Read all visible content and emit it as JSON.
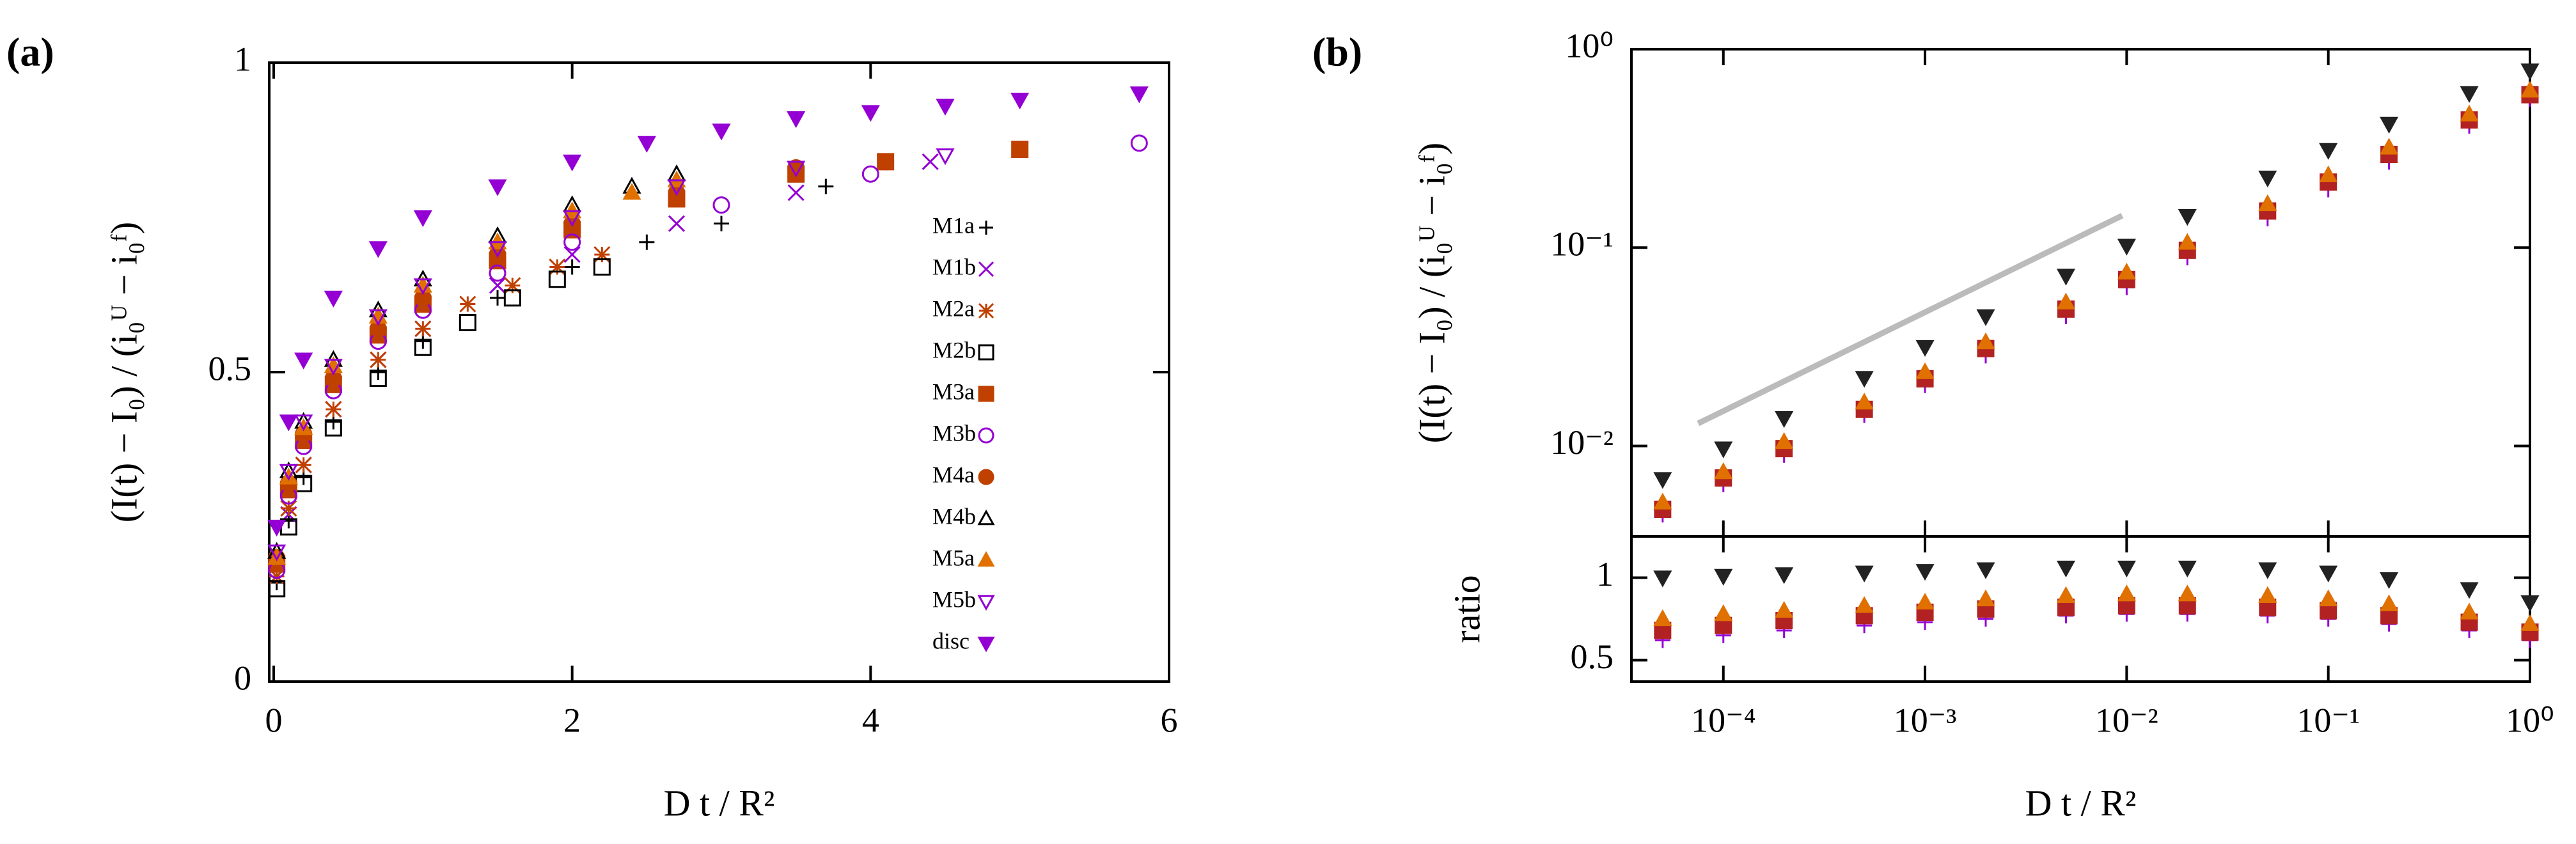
{
  "chart_data": [
    {
      "type": "scatter",
      "panel_label": "(a)",
      "xlabel": "D t / R²",
      "ylabel": "(I(t) − I₀) / (i₀ᵁ − i₀ᶠ)",
      "xlim": [
        -0.03,
        6
      ],
      "ylim": [
        0,
        1
      ],
      "xticks": [
        0,
        2,
        4,
        6
      ],
      "yticks": [
        0,
        0.5,
        1
      ],
      "legend": "right",
      "series": [
        {
          "name": "M1a",
          "marker": "plus",
          "color": "#000000",
          "x": [
            0.02,
            0.1,
            0.2,
            0.4,
            0.7,
            1,
            1.5,
            2,
            2.5,
            3,
            3.7
          ],
          "values": [
            0.16,
            0.26,
            0.33,
            0.42,
            0.5,
            0.55,
            0.62,
            0.67,
            0.71,
            0.74,
            0.8
          ]
        },
        {
          "name": "M1b",
          "marker": "cross",
          "color": "#9400d3",
          "x": [
            0.02,
            0.1,
            0.2,
            0.4,
            0.7,
            1,
            1.5,
            2,
            2.7,
            3.5,
            4.4
          ],
          "values": [
            0.17,
            0.27,
            0.35,
            0.44,
            0.52,
            0.57,
            0.64,
            0.69,
            0.74,
            0.79,
            0.84
          ]
        },
        {
          "name": "M2a",
          "marker": "star",
          "color": "#c04000",
          "x": [
            0.02,
            0.1,
            0.2,
            0.4,
            0.7,
            1,
            1.3,
            1.6,
            1.9,
            2.2
          ],
          "values": [
            0.17,
            0.28,
            0.35,
            0.44,
            0.52,
            0.57,
            0.61,
            0.64,
            0.67,
            0.69
          ]
        },
        {
          "name": "M2b",
          "marker": "square_open",
          "color": "#000000",
          "x": [
            0.02,
            0.1,
            0.2,
            0.4,
            0.7,
            1,
            1.3,
            1.6,
            1.9,
            2.2
          ],
          "values": [
            0.15,
            0.25,
            0.32,
            0.41,
            0.49,
            0.54,
            0.58,
            0.62,
            0.65,
            0.67
          ]
        },
        {
          "name": "M3a",
          "marker": "square",
          "color": "#c04000",
          "x": [
            0.02,
            0.1,
            0.2,
            0.4,
            0.7,
            1,
            1.5,
            2,
            2.7,
            3.5,
            4.1,
            5
          ],
          "values": [
            0.19,
            0.31,
            0.39,
            0.48,
            0.56,
            0.61,
            0.68,
            0.73,
            0.78,
            0.82,
            0.84,
            0.86
          ]
        },
        {
          "name": "M3b",
          "marker": "circle_open",
          "color": "#9400d3",
          "x": [
            0.02,
            0.1,
            0.2,
            0.4,
            0.7,
            1,
            1.5,
            2,
            3,
            4,
            5.8
          ],
          "values": [
            0.18,
            0.3,
            0.38,
            0.47,
            0.55,
            0.6,
            0.66,
            0.71,
            0.77,
            0.82,
            0.87
          ]
        },
        {
          "name": "M4a",
          "marker": "circle",
          "color": "#c04000",
          "x": [
            0.02,
            0.1,
            0.2,
            0.4,
            0.7,
            1,
            1.5,
            2,
            2.7,
            3.5,
            4.1
          ],
          "values": [
            0.2,
            0.32,
            0.4,
            0.49,
            0.57,
            0.62,
            0.69,
            0.74,
            0.79,
            0.83,
            0.84
          ]
        },
        {
          "name": "M4b",
          "marker": "triangle_up_open",
          "color": "#000000",
          "x": [
            0.02,
            0.1,
            0.2,
            0.4,
            0.7,
            1,
            1.5,
            2,
            2.4,
            2.7
          ],
          "values": [
            0.21,
            0.34,
            0.42,
            0.52,
            0.6,
            0.65,
            0.72,
            0.77,
            0.8,
            0.82
          ]
        },
        {
          "name": "M5a",
          "marker": "triangle_up",
          "color": "#e07000",
          "x": [
            0.02,
            0.1,
            0.2,
            0.4,
            0.7,
            1,
            1.5,
            2,
            2.4,
            2.7
          ],
          "values": [
            0.2,
            0.33,
            0.41,
            0.51,
            0.59,
            0.64,
            0.71,
            0.76,
            0.79,
            0.81
          ]
        },
        {
          "name": "M5b",
          "marker": "triangle_down_open",
          "color": "#9400d3",
          "x": [
            0.02,
            0.1,
            0.2,
            0.4,
            0.7,
            1,
            1.5,
            2,
            2.7,
            3.5,
            4.5
          ],
          "values": [
            0.21,
            0.34,
            0.42,
            0.51,
            0.59,
            0.64,
            0.7,
            0.75,
            0.8,
            0.83,
            0.85
          ]
        },
        {
          "name": "disc",
          "marker": "triangle_down",
          "color": "#9400d3",
          "x": [
            0.02,
            0.1,
            0.2,
            0.4,
            0.7,
            1,
            1.5,
            2,
            2.5,
            3,
            3.5,
            4,
            4.5,
            5,
            5.8
          ],
          "values": [
            0.25,
            0.42,
            0.52,
            0.62,
            0.7,
            0.75,
            0.8,
            0.84,
            0.87,
            0.89,
            0.91,
            0.92,
            0.93,
            0.94,
            0.95
          ]
        }
      ]
    },
    {
      "type": "scatter",
      "panel_label": "(b)",
      "ylabel": "(I(t) − I₀) / (i₀ᵁ − i₀ᶠ)",
      "log_x": true,
      "log_y": true,
      "xlim": [
        3.5e-05,
        1
      ],
      "ylim": [
        0.0035,
        1
      ],
      "yticks": [
        {
          "value": 0.01,
          "label": "10⁻²"
        },
        {
          "value": 0.1,
          "label": "10⁻¹"
        },
        {
          "value": 1,
          "label": "10⁰"
        }
      ],
      "reference_line": {
        "x": [
          7.5e-05,
          0.0095
        ],
        "y": [
          0.013,
          0.145
        ],
        "color": "#bbbbbb"
      },
      "x": [
        5e-05,
        0.0001,
        0.0002,
        0.0005,
        0.001,
        0.002,
        0.005,
        0.01,
        0.02,
        0.05,
        0.1,
        0.2,
        0.5,
        1
      ],
      "series": [
        {
          "marker": "plus",
          "color": "#9400d3",
          "values": [
            0.0045,
            0.0064,
            0.009,
            0.0143,
            0.0202,
            0.0285,
            0.045,
            0.063,
            0.089,
            0.14,
            0.196,
            0.27,
            0.41,
            0.56
          ]
        },
        {
          "marker": "square",
          "color": "#b22222",
          "values": [
            0.0048,
            0.0069,
            0.0097,
            0.0153,
            0.0218,
            0.031,
            0.049,
            0.069,
            0.097,
            0.153,
            0.214,
            0.295,
            0.44,
            0.59
          ]
        },
        {
          "marker": "triangle_up",
          "color": "#e07000",
          "values": [
            0.0052,
            0.0074,
            0.0105,
            0.0166,
            0.0236,
            0.0334,
            0.053,
            0.075,
            0.106,
            0.166,
            0.232,
            0.32,
            0.47,
            0.62
          ]
        },
        {
          "marker": "triangle_down",
          "color": "#222222",
          "values": [
            0.0068,
            0.0097,
            0.0138,
            0.022,
            0.0315,
            0.045,
            0.072,
            0.102,
            0.144,
            0.225,
            0.31,
            0.42,
            0.6,
            0.78
          ]
        }
      ]
    },
    {
      "type": "scatter",
      "ylabel": "ratio",
      "xlabel": "D t / R²",
      "log_x": true,
      "xlim": [
        3.5e-05,
        1
      ],
      "ylim": [
        0.37,
        1.25
      ],
      "xticks": [
        {
          "value": 0.0001,
          "label": "10⁻⁴"
        },
        {
          "value": 0.001,
          "label": "10⁻³"
        },
        {
          "value": 0.01,
          "label": "10⁻²"
        },
        {
          "value": 0.1,
          "label": "10⁻¹"
        },
        {
          "value": 1,
          "label": "10⁰"
        }
      ],
      "yticks": [
        0.5,
        1
      ],
      "x": [
        5e-05,
        0.0001,
        0.0002,
        0.0005,
        0.001,
        0.002,
        0.005,
        0.01,
        0.02,
        0.05,
        0.1,
        0.2,
        0.5,
        1
      ],
      "series": [
        {
          "marker": "plus",
          "color": "#9400d3",
          "values": [
            0.62,
            0.65,
            0.68,
            0.71,
            0.73,
            0.75,
            0.77,
            0.78,
            0.78,
            0.77,
            0.75,
            0.72,
            0.68,
            0.62
          ]
        },
        {
          "marker": "square",
          "color": "#b22222",
          "values": [
            0.68,
            0.71,
            0.74,
            0.77,
            0.79,
            0.81,
            0.82,
            0.83,
            0.83,
            0.82,
            0.8,
            0.77,
            0.73,
            0.67
          ]
        },
        {
          "marker": "triangle_up",
          "color": "#e07000",
          "values": [
            0.75,
            0.78,
            0.8,
            0.83,
            0.85,
            0.87,
            0.89,
            0.9,
            0.9,
            0.89,
            0.87,
            0.84,
            0.79,
            0.72
          ]
        },
        {
          "marker": "triangle_down",
          "color": "#222222",
          "values": [
            1.0,
            1.01,
            1.02,
            1.03,
            1.04,
            1.05,
            1.06,
            1.06,
            1.06,
            1.05,
            1.03,
            0.99,
            0.93,
            0.85
          ]
        }
      ]
    }
  ]
}
